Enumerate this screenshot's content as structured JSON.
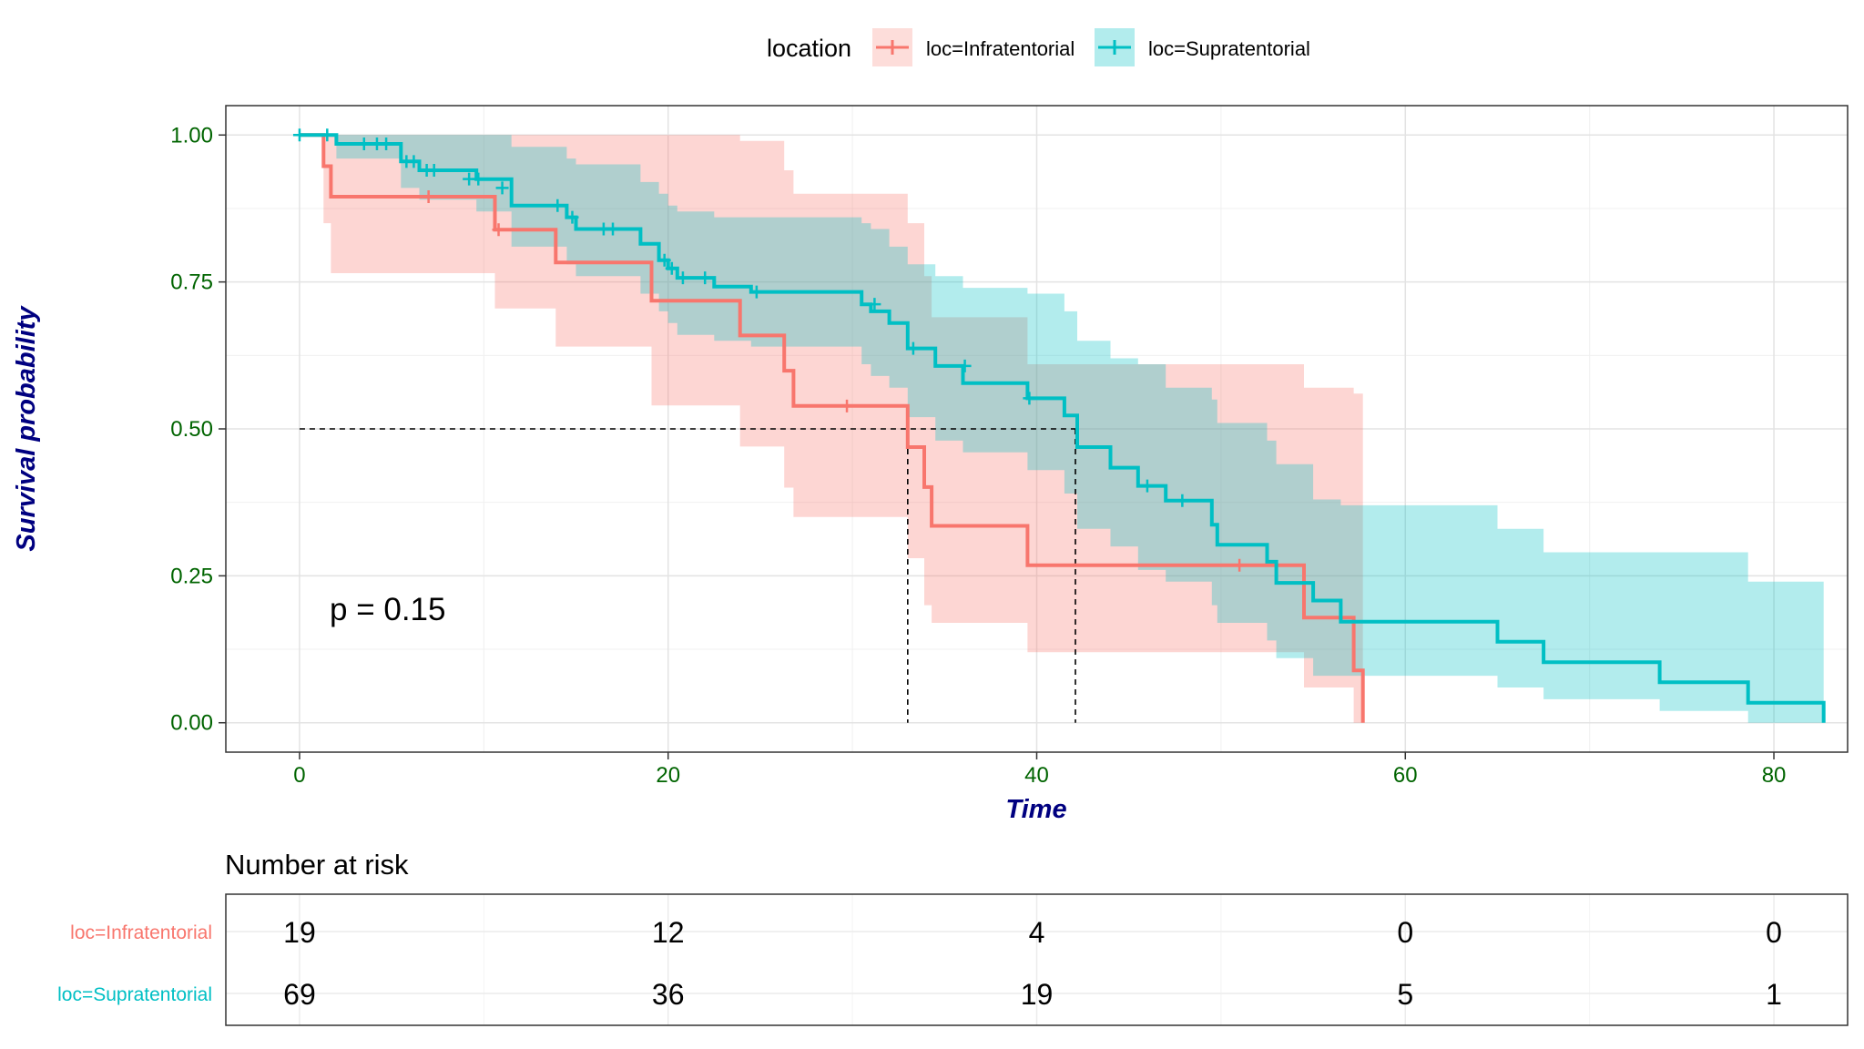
{
  "chart_data": {
    "type": "kaplan-meier",
    "legend": {
      "title": "location",
      "position": "top",
      "entries": [
        "loc=Infratentorial",
        "loc=Supratentorial"
      ]
    },
    "xlabel": "Time",
    "ylabel": "Survival probability",
    "xlim": [
      -4,
      84
    ],
    "ylim": [
      -0.05,
      1.05
    ],
    "x_ticks": [
      0,
      20,
      40,
      60,
      80
    ],
    "y_ticks": [
      0,
      0.25,
      0.5,
      0.75,
      1
    ],
    "y_tick_labels": [
      "0.00",
      "0.25",
      "0.50",
      "0.75",
      "1.00"
    ],
    "grid": true,
    "pvalue_text": "p = 0.15",
    "median_line": {
      "y": 0.5,
      "medians": [
        33.0,
        42.1
      ]
    },
    "series": [
      {
        "name": "loc=Infratentorial",
        "color": "#F8766D",
        "steps": [
          [
            0,
            1.0
          ],
          [
            1.3,
            0.947
          ],
          [
            1.7,
            0.895
          ],
          [
            10.6,
            0.839
          ],
          [
            13.9,
            0.783
          ],
          [
            19.1,
            0.718
          ],
          [
            23.9,
            0.659
          ],
          [
            26.3,
            0.599
          ],
          [
            26.8,
            0.539
          ],
          [
            33.0,
            0.469
          ],
          [
            33.9,
            0.401
          ],
          [
            34.3,
            0.335
          ],
          [
            39.5,
            0.268
          ],
          [
            54.5,
            0.179
          ],
          [
            57.2,
            0.089
          ],
          [
            57.7,
            0.0
          ]
        ],
        "lower": [
          [
            0,
            1.0
          ],
          [
            1.3,
            0.85
          ],
          [
            1.7,
            0.765
          ],
          [
            10.6,
            0.705
          ],
          [
            13.9,
            0.64
          ],
          [
            19.1,
            0.54
          ],
          [
            23.9,
            0.47
          ],
          [
            26.3,
            0.4
          ],
          [
            26.8,
            0.35
          ],
          [
            33.0,
            0.28
          ],
          [
            33.9,
            0.2
          ],
          [
            34.3,
            0.17
          ],
          [
            39.5,
            0.12
          ],
          [
            54.5,
            0.06
          ],
          [
            57.2,
            0.0
          ],
          [
            57.7,
            0.0
          ]
        ],
        "upper": [
          [
            0,
            1.0
          ],
          [
            1.3,
            1.0
          ],
          [
            1.7,
            1.0
          ],
          [
            10.6,
            1.0
          ],
          [
            13.9,
            1.0
          ],
          [
            19.1,
            1.0
          ],
          [
            23.9,
            0.99
          ],
          [
            26.3,
            0.94
          ],
          [
            26.8,
            0.9
          ],
          [
            33.0,
            0.85
          ],
          [
            33.9,
            0.76
          ],
          [
            34.3,
            0.69
          ],
          [
            39.5,
            0.61
          ],
          [
            54.5,
            0.57
          ],
          [
            57.2,
            0.56
          ],
          [
            57.7,
            0.56
          ]
        ],
        "censor": [
          [
            7.0,
            0.895
          ],
          [
            10.8,
            0.839
          ],
          [
            29.7,
            0.539
          ],
          [
            51.0,
            0.268
          ]
        ]
      },
      {
        "name": "loc=Supratentorial",
        "color": "#00BFC4",
        "steps": [
          [
            0,
            1.0
          ],
          [
            2.0,
            0.985
          ],
          [
            5.5,
            0.955
          ],
          [
            6.5,
            0.94
          ],
          [
            9.6,
            0.925
          ],
          [
            11.5,
            0.88
          ],
          [
            14.5,
            0.86
          ],
          [
            15.0,
            0.84
          ],
          [
            18.5,
            0.815
          ],
          [
            19.5,
            0.787
          ],
          [
            20.0,
            0.773
          ],
          [
            20.5,
            0.757
          ],
          [
            22.5,
            0.742
          ],
          [
            24.5,
            0.733
          ],
          [
            30.5,
            0.712
          ],
          [
            31.0,
            0.7
          ],
          [
            32.0,
            0.68
          ],
          [
            33.0,
            0.637
          ],
          [
            34.5,
            0.607
          ],
          [
            36.0,
            0.578
          ],
          [
            39.5,
            0.552
          ],
          [
            41.5,
            0.523
          ],
          [
            42.2,
            0.469
          ],
          [
            44.0,
            0.434
          ],
          [
            45.5,
            0.403
          ],
          [
            47.0,
            0.378
          ],
          [
            49.5,
            0.337
          ],
          [
            49.8,
            0.303
          ],
          [
            52.5,
            0.274
          ],
          [
            53.0,
            0.238
          ],
          [
            55.0,
            0.208
          ],
          [
            56.5,
            0.172
          ],
          [
            65.0,
            0.138
          ],
          [
            67.5,
            0.103
          ],
          [
            73.8,
            0.069
          ],
          [
            78.6,
            0.034
          ],
          [
            82.7,
            0.0
          ]
        ],
        "lower": [
          [
            0,
            1.0
          ],
          [
            2.0,
            0.96
          ],
          [
            5.5,
            0.91
          ],
          [
            6.5,
            0.89
          ],
          [
            9.6,
            0.87
          ],
          [
            11.5,
            0.81
          ],
          [
            14.5,
            0.78
          ],
          [
            15.0,
            0.76
          ],
          [
            18.5,
            0.73
          ],
          [
            19.5,
            0.7
          ],
          [
            20.0,
            0.68
          ],
          [
            20.5,
            0.66
          ],
          [
            22.5,
            0.65
          ],
          [
            24.5,
            0.64
          ],
          [
            30.5,
            0.61
          ],
          [
            31.0,
            0.59
          ],
          [
            32.0,
            0.57
          ],
          [
            33.0,
            0.52
          ],
          [
            34.5,
            0.48
          ],
          [
            36.0,
            0.46
          ],
          [
            39.5,
            0.43
          ],
          [
            41.5,
            0.39
          ],
          [
            42.2,
            0.33
          ],
          [
            44.0,
            0.3
          ],
          [
            45.5,
            0.26
          ],
          [
            47.0,
            0.24
          ],
          [
            49.5,
            0.2
          ],
          [
            49.8,
            0.17
          ],
          [
            52.5,
            0.14
          ],
          [
            53.0,
            0.11
          ],
          [
            55.0,
            0.08
          ],
          [
            56.5,
            0.08
          ],
          [
            65.0,
            0.06
          ],
          [
            67.5,
            0.04
          ],
          [
            73.8,
            0.02
          ],
          [
            78.6,
            0.0
          ],
          [
            82.7,
            0.0
          ]
        ],
        "upper": [
          [
            0,
            1.0
          ],
          [
            2.0,
            1.0
          ],
          [
            5.5,
            1.0
          ],
          [
            6.5,
            1.0
          ],
          [
            9.6,
            1.0
          ],
          [
            11.5,
            0.98
          ],
          [
            14.5,
            0.96
          ],
          [
            15.0,
            0.95
          ],
          [
            18.5,
            0.92
          ],
          [
            19.5,
            0.9
          ],
          [
            20.0,
            0.88
          ],
          [
            20.5,
            0.87
          ],
          [
            22.5,
            0.86
          ],
          [
            24.5,
            0.86
          ],
          [
            30.5,
            0.85
          ],
          [
            31.0,
            0.84
          ],
          [
            32.0,
            0.81
          ],
          [
            33.0,
            0.78
          ],
          [
            34.5,
            0.76
          ],
          [
            36.0,
            0.74
          ],
          [
            39.5,
            0.73
          ],
          [
            41.5,
            0.7
          ],
          [
            42.2,
            0.65
          ],
          [
            44.0,
            0.62
          ],
          [
            45.5,
            0.61
          ],
          [
            47.0,
            0.57
          ],
          [
            49.5,
            0.55
          ],
          [
            49.8,
            0.51
          ],
          [
            52.5,
            0.48
          ],
          [
            53.0,
            0.44
          ],
          [
            55.0,
            0.38
          ],
          [
            56.5,
            0.37
          ],
          [
            65.0,
            0.33
          ],
          [
            67.5,
            0.29
          ],
          [
            73.8,
            0.29
          ],
          [
            78.6,
            0.24
          ],
          [
            82.7,
            0.24
          ]
        ],
        "censor": [
          [
            0,
            1.0
          ],
          [
            1.5,
            1.0
          ],
          [
            3.5,
            0.985
          ],
          [
            4.2,
            0.985
          ],
          [
            4.7,
            0.985
          ],
          [
            5.8,
            0.955
          ],
          [
            6.2,
            0.955
          ],
          [
            6.9,
            0.94
          ],
          [
            7.3,
            0.94
          ],
          [
            9.2,
            0.925
          ],
          [
            9.7,
            0.925
          ],
          [
            11.0,
            0.91
          ],
          [
            14.0,
            0.88
          ],
          [
            14.8,
            0.86
          ],
          [
            16.5,
            0.84
          ],
          [
            17.0,
            0.84
          ],
          [
            19.8,
            0.787
          ],
          [
            20.2,
            0.773
          ],
          [
            20.8,
            0.757
          ],
          [
            22.0,
            0.757
          ],
          [
            24.8,
            0.733
          ],
          [
            31.2,
            0.712
          ],
          [
            33.3,
            0.637
          ],
          [
            36.1,
            0.607
          ],
          [
            39.6,
            0.552
          ],
          [
            46.0,
            0.403
          ],
          [
            47.9,
            0.378
          ]
        ]
      }
    ]
  },
  "risk_table": {
    "title": "Number at risk",
    "times": [
      0,
      20,
      40,
      60,
      80
    ],
    "rows": [
      {
        "label": "loc=Infratentorial",
        "color": "#F8766D",
        "values": [
          "19",
          "12",
          "4",
          "0",
          "0"
        ]
      },
      {
        "label": "loc=Supratentorial",
        "color": "#00BFC4",
        "values": [
          "69",
          "36",
          "19",
          "5",
          "1"
        ]
      }
    ]
  }
}
